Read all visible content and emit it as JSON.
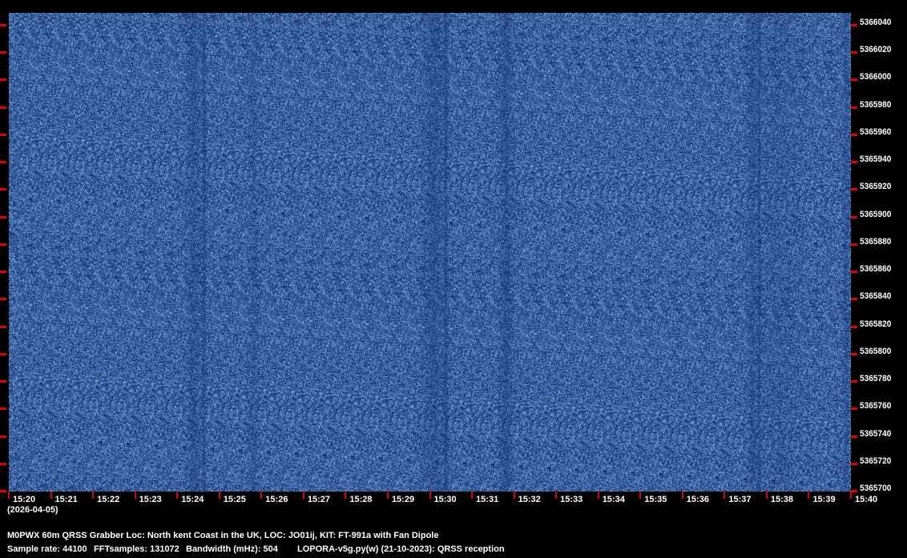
{
  "chart_data": {
    "type": "heatmap",
    "x_tick_labels": [
      "15:20",
      "15:21",
      "15:22",
      "15:23",
      "15:24",
      "15:25",
      "15:26",
      "15:27",
      "15:28",
      "15:29",
      "15:30",
      "15:31",
      "15:32",
      "15:33",
      "15:34",
      "15:35",
      "15:36",
      "15:37",
      "15:38",
      "15:39",
      "15:40"
    ],
    "y_tick_labels": [
      "5366040",
      "5366020",
      "5366000",
      "5365980",
      "5365960",
      "5365940",
      "5365920",
      "5365900",
      "5365880",
      "5365860",
      "5365840",
      "5365820",
      "5365800",
      "5365780",
      "5365760",
      "5365740",
      "5365720",
      "5365700"
    ],
    "xlim": [
      "15:20",
      "15:40"
    ],
    "ylim": [
      5365700,
      5366040
    ],
    "date": "(2026-04-05)",
    "colormap": [
      "#0a1f5c",
      "#1a4d9c",
      "#6fa8e0"
    ],
    "tick_color": "#e00000"
  },
  "footer": {
    "line1": "M0PWX 60m QRSS Grabber Loc: North kent Coast in the UK, LOC: JO01ij, KIT: FT-991a with Fan Dipole",
    "sample_rate": "Sample rate: 44100",
    "fft_samples": "FFTsamples: 131072",
    "bandwidth": "Bandwidth (mHz): 504",
    "software": "LOPORA-v5g.py(w) (21-10-2023): QRSS reception"
  }
}
